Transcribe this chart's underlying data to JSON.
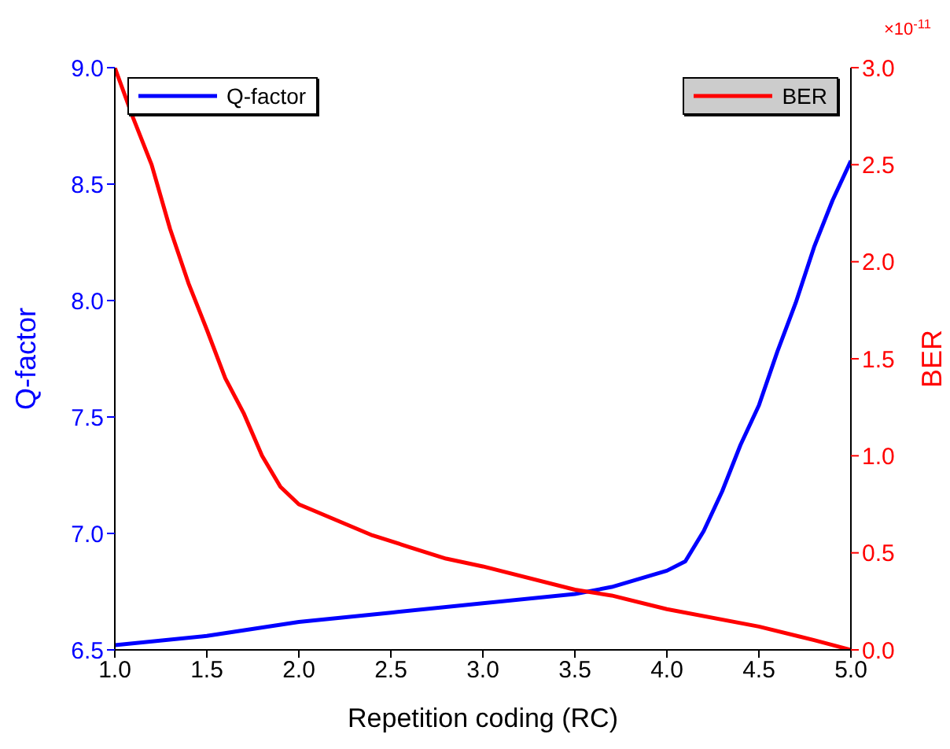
{
  "chart_data": {
    "type": "line",
    "xlabel": "Repetition coding (RC)",
    "ylabel": "Q-factor",
    "y2label": "BER",
    "annotations": [
      "×10$^{-11}$"
    ],
    "xlim": [
      1.0,
      5.0
    ],
    "xticks": [
      {
        "value": 1,
        "label": "1.0"
      },
      1.5,
      {
        "value": 2,
        "label": "2.0"
      },
      2.5,
      {
        "value": 3,
        "label": "3.0"
      },
      3.5,
      {
        "value": 4,
        "label": "4.0"
      },
      4.5,
      {
        "value": 5,
        "label": "5.0"
      }
    ],
    "ylim": [
      6.5,
      9.0
    ],
    "yticks": [
      6.5,
      {
        "value": 7,
        "label": "7.0"
      },
      7.5,
      {
        "value": 8,
        "label": "8.0"
      },
      8.5,
      {
        "value": 9,
        "label": "9.0"
      }
    ],
    "y2lim": [
      0,
      3.0
    ],
    "y2ticks": [
      {
        "value": 0,
        "label": "0.0"
      },
      0.5,
      {
        "value": 1,
        "label": "1.0"
      },
      1.5,
      {
        "value": 2,
        "label": "2.0"
      },
      2.5,
      {
        "value": 3,
        "label": "3.0"
      }
    ],
    "legend": "top",
    "grid": false,
    "marker": "none",
    "line_style": "solid",
    "series": [
      {
        "name": "Q-factor",
        "color": "#0000ff",
        "x": [
          1.0,
          1.5,
          2.0,
          2.5,
          3.0,
          3.5,
          3.7,
          4.0,
          4.1,
          4.2,
          4.3,
          4.4,
          4.5,
          4.6,
          4.7,
          4.8,
          4.9,
          5.0
        ],
        "values": [
          6.52,
          6.56,
          6.62,
          6.66,
          6.7,
          6.74,
          6.77,
          6.84,
          6.88,
          7.01,
          7.18,
          7.38,
          7.55,
          7.78,
          7.99,
          8.23,
          8.43,
          8.6
        ]
      },
      {
        "name": "BER",
        "color": "#ff0000",
        "axis": "y2",
        "x": [
          1.0,
          1.1,
          1.2,
          1.3,
          1.4,
          1.5,
          1.6,
          1.7,
          1.8,
          1.9,
          2.0,
          2.2,
          2.4,
          2.6,
          2.8,
          3.0,
          3.5,
          3.7,
          4.0,
          4.5,
          4.8,
          5.0
        ],
        "values": [
          3.0,
          2.74,
          2.5,
          2.17,
          1.89,
          1.65,
          1.4,
          1.22,
          1.0,
          0.84,
          0.75,
          0.67,
          0.59,
          0.53,
          0.47,
          0.43,
          0.31,
          0.28,
          0.21,
          0.12,
          0.05,
          0.0
        ]
      }
    ]
  }
}
